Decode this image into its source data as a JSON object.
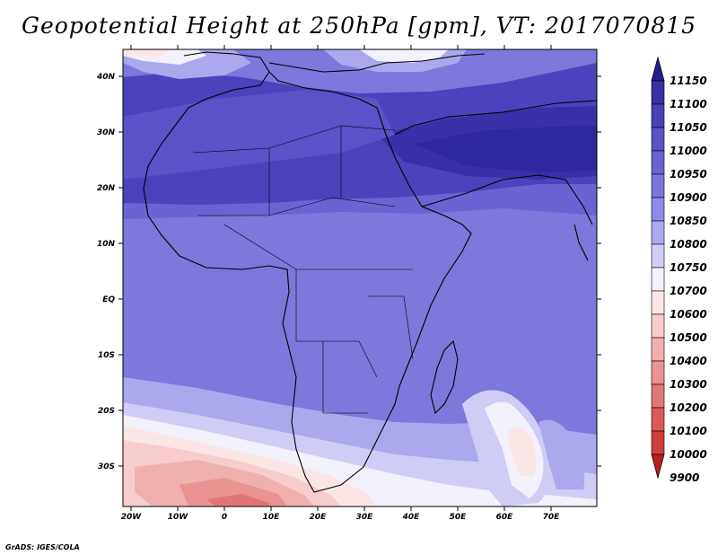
{
  "title": "Geopotential Height at 250hPa [gpm], VT: 2017070815",
  "credit": "GrADS: IGES/COLA",
  "lat_labels": [
    "40N",
    "30N",
    "20N",
    "10N",
    "EQ",
    "10S",
    "20S",
    "30S"
  ],
  "lon_labels": [
    "20W",
    "10W",
    "0",
    "10E",
    "20E",
    "30E",
    "40E",
    "50E",
    "60E",
    "70E"
  ],
  "colorbar": {
    "levels": [
      "11150",
      "11100",
      "11050",
      "11000",
      "10950",
      "10900",
      "10850",
      "10800",
      "10750",
      "10700",
      "10600",
      "10500",
      "10400",
      "10300",
      "10200",
      "10100",
      "10000",
      "9900"
    ],
    "colors": [
      "#251d8c",
      "#3a2fa6",
      "#4a40b8",
      "#5a52c6",
      "#6a63d2",
      "#7a74dd",
      "#8f8ae6",
      "#aba8ee",
      "#cfcdf6",
      "#f2f1fc",
      "#fbe6e6",
      "#f7cccc",
      "#f1b0b0",
      "#e99393",
      "#e27676",
      "#db5959",
      "#d23c3c",
      "#b72020"
    ]
  },
  "palette": {
    "band_40n_north": "#d6d3f4",
    "band_high": "#2f27a0",
    "band_mid": "#4c42bc",
    "band_low": "#6b63d2",
    "band_lower": "#7e77dc",
    "band_south_pale": "#c8c5f2",
    "red_light": "#f5cfd0",
    "red_mid": "#ec9a9c",
    "red_dark": "#de6a6d"
  }
}
